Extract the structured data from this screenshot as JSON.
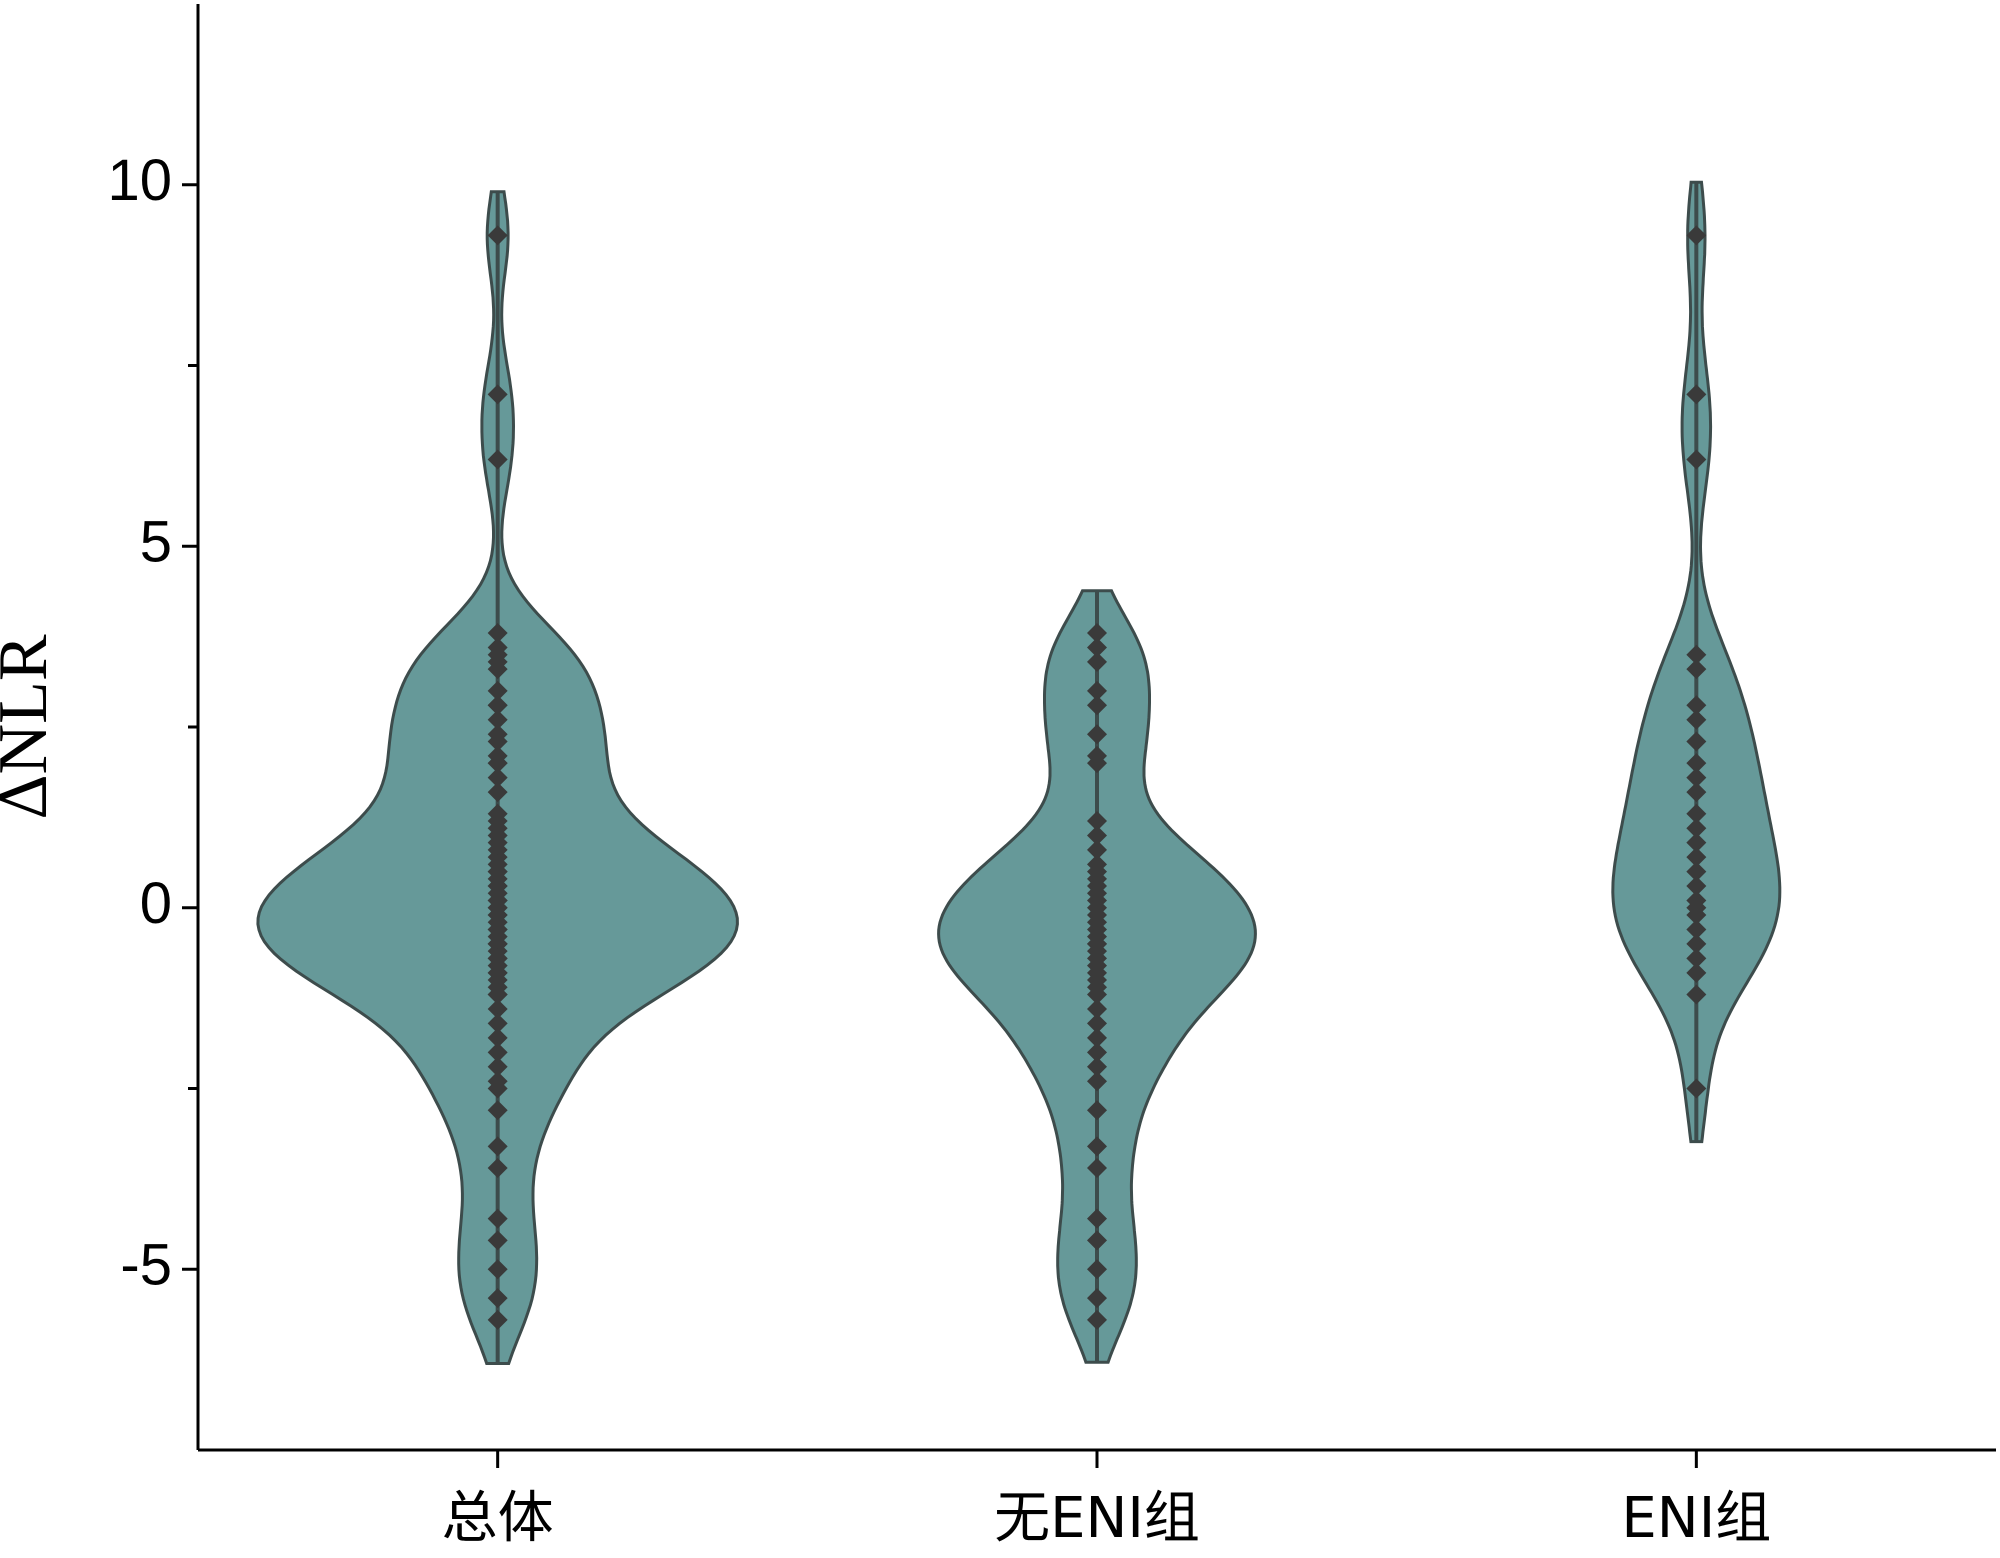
{
  "chart_data": {
    "type": "violin",
    "ylabel": "ΔNLR",
    "categories": [
      "总体",
      "无ENI组",
      "ENI组"
    ],
    "series": [
      {
        "name": "总体",
        "color": "#669999",
        "values": [
          9.3,
          7.1,
          6.2,
          3.5,
          3.3,
          2.8,
          2.6,
          2.3,
          2.0,
          1.8,
          1.6,
          1.3,
          1.1,
          0.9,
          0.7,
          0.5,
          0.3,
          0.1,
          0.0,
          -0.1,
          -0.3,
          -0.5,
          -0.7,
          -0.9,
          -1.2,
          -2.5,
          3.8,
          3.6,
          3.4,
          3.0,
          2.8,
          2.4,
          2.1,
          2.0,
          1.2,
          1.0,
          0.8,
          0.6,
          0.5,
          0.4,
          0.3,
          0.2,
          0.1,
          0.0,
          -0.1,
          -0.2,
          -0.3,
          -0.4,
          -0.5,
          -0.5,
          -0.6,
          -0.7,
          -0.8,
          -0.9,
          -1.0,
          -1.1,
          -1.2,
          -1.4,
          -1.6,
          -1.8,
          -2.0,
          -2.2,
          -2.4,
          -2.8,
          -3.3,
          -3.6,
          -4.3,
          -4.6,
          -5.0,
          -5.4,
          -5.7
        ]
      },
      {
        "name": "无ENI组",
        "color": "#669999",
        "values": [
          3.8,
          3.6,
          3.4,
          3.0,
          2.8,
          2.4,
          2.1,
          2.0,
          1.2,
          1.0,
          0.8,
          0.6,
          0.5,
          0.4,
          0.3,
          0.2,
          0.1,
          0.0,
          -0.1,
          -0.2,
          -0.3,
          -0.4,
          -0.5,
          -0.5,
          -0.6,
          -0.7,
          -0.8,
          -0.9,
          -1.0,
          -1.1,
          -1.2,
          -1.4,
          -1.6,
          -1.8,
          -2.0,
          -2.2,
          -2.4,
          -2.8,
          -3.3,
          -3.6,
          -4.3,
          -4.6,
          -5.0,
          -5.4,
          -5.7
        ]
      },
      {
        "name": "ENI组",
        "color": "#669999",
        "values": [
          9.3,
          7.1,
          6.2,
          3.5,
          3.3,
          2.8,
          2.6,
          2.3,
          2.0,
          1.8,
          1.6,
          1.3,
          1.1,
          0.9,
          0.7,
          0.5,
          0.3,
          0.1,
          0.0,
          -0.1,
          -0.3,
          -0.5,
          -0.7,
          -0.9,
          -1.2,
          -2.5
        ]
      }
    ],
    "edge_color": "#3d4c4c",
    "point_color": "#3a3a3a",
    "ylim": [
      -7.5,
      12.5
    ],
    "yticks": [
      -5,
      0,
      5,
      10
    ],
    "yminor_ticks": [
      -2.5,
      2.5,
      7.5
    ]
  }
}
